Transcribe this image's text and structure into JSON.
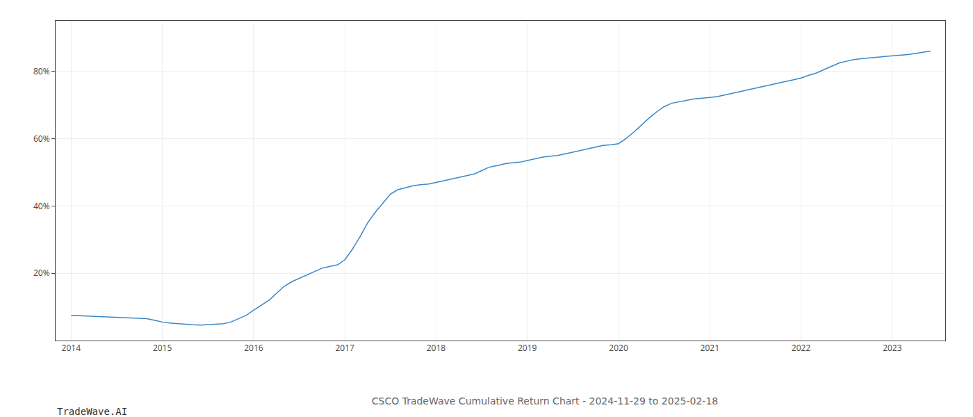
{
  "chart_data": {
    "type": "line",
    "title": "CSCO TradeWave Cumulative Return Chart - 2024-11-29 to 2025-02-18",
    "annotations": [
      "TradeWave.AI"
    ],
    "x": [
      2014.0,
      2014.08,
      2014.17,
      2014.25,
      2014.33,
      2014.42,
      2014.5,
      2014.58,
      2014.67,
      2014.75,
      2014.83,
      2014.92,
      2015.0,
      2015.08,
      2015.17,
      2015.25,
      2015.33,
      2015.42,
      2015.5,
      2015.58,
      2015.67,
      2015.75,
      2015.83,
      2015.92,
      2016.0,
      2016.08,
      2016.17,
      2016.25,
      2016.33,
      2016.42,
      2016.5,
      2016.58,
      2016.67,
      2016.75,
      2016.83,
      2016.92,
      2017.0,
      2017.08,
      2017.17,
      2017.25,
      2017.33,
      2017.42,
      2017.5,
      2017.58,
      2017.67,
      2017.75,
      2017.83,
      2017.92,
      2018.0,
      2018.08,
      2018.17,
      2018.25,
      2018.33,
      2018.42,
      2018.5,
      2018.58,
      2018.67,
      2018.75,
      2018.83,
      2018.92,
      2019.0,
      2019.08,
      2019.17,
      2019.25,
      2019.33,
      2019.42,
      2019.5,
      2019.58,
      2019.67,
      2019.75,
      2019.83,
      2019.92,
      2020.0,
      2020.08,
      2020.17,
      2020.25,
      2020.33,
      2020.42,
      2020.5,
      2020.58,
      2020.67,
      2020.75,
      2020.83,
      2020.92,
      2021.0,
      2021.08,
      2021.17,
      2021.25,
      2021.33,
      2021.42,
      2021.5,
      2021.58,
      2021.67,
      2021.75,
      2021.83,
      2021.92,
      2022.0,
      2022.08,
      2022.17,
      2022.25,
      2022.33,
      2022.42,
      2022.5,
      2022.58,
      2022.67,
      2022.75,
      2022.83,
      2022.92,
      2023.0,
      2023.08,
      2023.17,
      2023.25,
      2023.33,
      2023.42
    ],
    "values": [
      7.5,
      7.4,
      7.3,
      7.2,
      7.1,
      7.0,
      6.9,
      6.8,
      6.7,
      6.6,
      6.5,
      6.0,
      5.5,
      5.2,
      5.0,
      4.8,
      4.7,
      4.6,
      4.7,
      4.8,
      5.0,
      5.5,
      6.5,
      7.5,
      9.0,
      10.5,
      12.0,
      14.0,
      16.0,
      17.5,
      18.5,
      19.5,
      20.5,
      21.5,
      22.0,
      22.5,
      24.0,
      27.0,
      31.0,
      35.0,
      38.0,
      41.0,
      43.5,
      44.8,
      45.5,
      46.0,
      46.3,
      46.5,
      47.0,
      47.5,
      48.0,
      48.5,
      49.0,
      49.5,
      50.5,
      51.5,
      52.0,
      52.5,
      52.8,
      53.0,
      53.5,
      54.0,
      54.5,
      54.8,
      55.0,
      55.5,
      56.0,
      56.5,
      57.0,
      57.5,
      58.0,
      58.2,
      58.5,
      60.0,
      62.0,
      64.0,
      66.0,
      68.0,
      69.5,
      70.5,
      71.0,
      71.5,
      71.8,
      72.0,
      72.2,
      72.5,
      73.0,
      73.5,
      74.0,
      74.5,
      75.0,
      75.5,
      76.0,
      76.5,
      77.0,
      77.5,
      78.0,
      78.8,
      79.5,
      80.5,
      81.5,
      82.5,
      83.0,
      83.5,
      83.8,
      84.0,
      84.2,
      84.3,
      84.5,
      84.8,
      85.0,
      85.3,
      85.6,
      86.0
    ],
    "color": "#3a86c8",
    "xlim": [
      2013.83,
      2023.58
    ],
    "ylim": [
      0,
      95
    ],
    "xticks": [
      2014,
      2015,
      2016,
      2017,
      2018,
      2019,
      2020,
      2021,
      2022,
      2023
    ],
    "yticks": [
      {
        "value": 20,
        "label": "20%"
      },
      {
        "value": 40,
        "label": "40%"
      },
      {
        "value": 60,
        "label": "60%"
      },
      {
        "value": 80,
        "label": "80%"
      }
    ],
    "grid": true
  }
}
